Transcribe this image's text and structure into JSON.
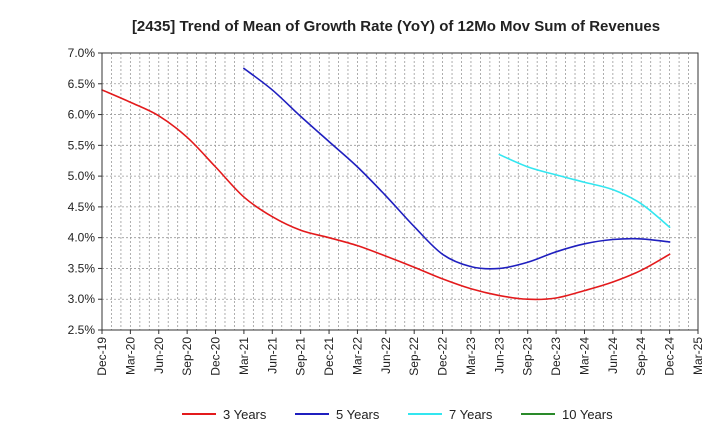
{
  "chart_data": {
    "type": "line",
    "title": "[2435]  Trend of Mean of Growth Rate (YoY) of 12Mo Mov Sum of Revenues",
    "xlabel": "",
    "ylabel": "",
    "ylim": [
      2.5,
      7.0
    ],
    "y_ticks": [
      2.5,
      3.0,
      3.5,
      4.0,
      4.5,
      5.0,
      5.5,
      6.0,
      6.5,
      7.0
    ],
    "y_tick_labels": [
      "2.5%",
      "3.0%",
      "3.5%",
      "4.0%",
      "4.5%",
      "5.0%",
      "5.5%",
      "6.0%",
      "6.5%",
      "7.0%"
    ],
    "x_tick_labels": [
      "Dec-19",
      "Mar-20",
      "Jun-20",
      "Sep-20",
      "Dec-20",
      "Mar-21",
      "Jun-21",
      "Sep-21",
      "Dec-21",
      "Mar-22",
      "Jun-22",
      "Sep-22",
      "Dec-22",
      "Mar-23",
      "Jun-23",
      "Sep-23",
      "Dec-23",
      "Mar-24",
      "Jun-24",
      "Sep-24",
      "Dec-24",
      "Mar-25"
    ],
    "grid": true,
    "legend_position": "bottom",
    "series": [
      {
        "name": "3 Years",
        "color": "#e31a1c",
        "points": [
          [
            0,
            6.4
          ],
          [
            1,
            6.2
          ],
          [
            2,
            5.98
          ],
          [
            3,
            5.63
          ],
          [
            4,
            5.15
          ],
          [
            5,
            4.66
          ],
          [
            6,
            4.34
          ],
          [
            7,
            4.12
          ],
          [
            8,
            4.0
          ],
          [
            9,
            3.87
          ],
          [
            10,
            3.7
          ],
          [
            11,
            3.52
          ],
          [
            12,
            3.33
          ],
          [
            13,
            3.17
          ],
          [
            14,
            3.06
          ],
          [
            15,
            3.0
          ],
          [
            16,
            3.02
          ],
          [
            17,
            3.14
          ],
          [
            18,
            3.28
          ],
          [
            19,
            3.47
          ],
          [
            20,
            3.73
          ]
        ]
      },
      {
        "name": "5 Years",
        "color": "#1f1fbf",
        "points": [
          [
            5,
            6.75
          ],
          [
            6,
            6.4
          ],
          [
            7,
            5.97
          ],
          [
            8,
            5.56
          ],
          [
            9,
            5.15
          ],
          [
            10,
            4.68
          ],
          [
            11,
            4.18
          ],
          [
            12,
            3.73
          ],
          [
            13,
            3.53
          ],
          [
            14,
            3.5
          ],
          [
            15,
            3.6
          ],
          [
            16,
            3.77
          ],
          [
            17,
            3.9
          ],
          [
            18,
            3.97
          ],
          [
            19,
            3.98
          ],
          [
            20,
            3.93
          ]
        ]
      },
      {
        "name": "7 Years",
        "color": "#33e6f0",
        "points": [
          [
            14,
            5.35
          ],
          [
            15,
            5.15
          ],
          [
            16,
            5.02
          ],
          [
            17,
            4.9
          ],
          [
            18,
            4.78
          ],
          [
            19,
            4.55
          ],
          [
            20,
            4.17
          ]
        ]
      },
      {
        "name": "10 Years",
        "color": "#2a8a2a",
        "points": []
      }
    ]
  }
}
